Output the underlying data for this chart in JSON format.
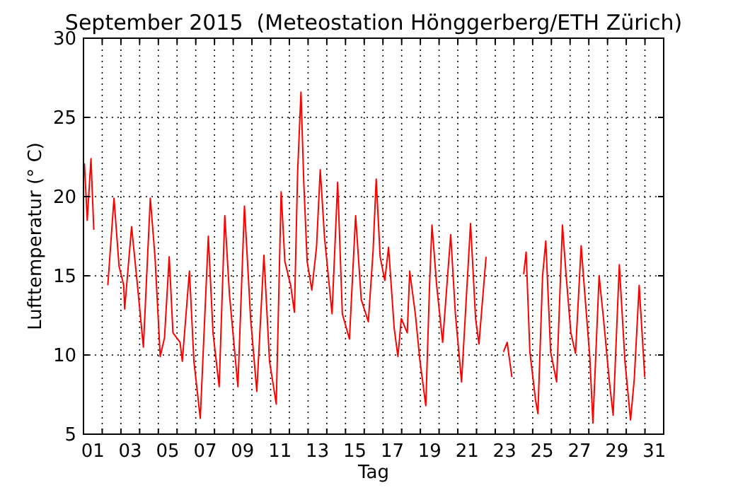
{
  "chart_data": {
    "type": "line",
    "title": "September 2015  (Meteostation Hönggerberg/ETH Zürich)",
    "xlabel": "Tag",
    "ylabel": "Lufttemperatur (° C)",
    "x": [
      1.05,
      1.2,
      1.4,
      1.55,
      1.9,
      2.3,
      2.63,
      2.9,
      3.15,
      3.2,
      3.57,
      3.9,
      4.2,
      4.57,
      4.82,
      5.1,
      5.33,
      5.58,
      5.78,
      6.16,
      6.28,
      6.66,
      6.9,
      7.24,
      7.67,
      7.92,
      8.25,
      8.55,
      8.8,
      9.25,
      9.6,
      9.93,
      10.26,
      10.64,
      10.94,
      11.3,
      11.56,
      11.76,
      12.07,
      12.27,
      12.44,
      12.62,
      12.77,
      12.95,
      13.2,
      13.45,
      13.65,
      13.88,
      14.28,
      14.58,
      14.83,
      15.21,
      15.54,
      15.84,
      16.22,
      16.47,
      16.64,
      16.85,
      17.1,
      17.3,
      17.6,
      17.8,
      17.98,
      18.3,
      18.43,
      18.73,
      18.98,
      19.29,
      19.49,
      19.62,
      19.87,
      20.19,
      20.62,
      20.87,
      21.2,
      21.68,
      21.95,
      22.13,
      22.51,
      23.0,
      23.44,
      23.64,
      23.89,
      24.2,
      24.52,
      24.65,
      24.85,
      25.15,
      25.28,
      25.53,
      25.7,
      25.96,
      26.28,
      26.59,
      26.79,
      27.04,
      27.29,
      27.59,
      27.79,
      28.05,
      28.22,
      28.55,
      28.8,
      29.1,
      29.3,
      29.63,
      29.93,
      30.23,
      30.43,
      30.69,
      30.99
    ],
    "series": [
      {
        "color": "#ff0000",
        "values": [
          22.1,
          18.5,
          22.4,
          17.9,
          null,
          14.4,
          19.9,
          15.6,
          14.4,
          12.9,
          18.1,
          14.2,
          10.5,
          19.9,
          16.2,
          9.9,
          11.1,
          16.2,
          11.4,
          10.8,
          9.6,
          15.3,
          9.6,
          6.0,
          17.5,
          11.4,
          8.0,
          18.8,
          13.8,
          8.0,
          19.4,
          12.3,
          7.7,
          16.3,
          9.6,
          6.9,
          20.3,
          15.9,
          14.4,
          12.7,
          21.5,
          26.6,
          20.9,
          15.9,
          14.1,
          16.8,
          21.7,
          17.4,
          12.6,
          20.9,
          12.6,
          11.0,
          18.8,
          13.5,
          12.1,
          16.5,
          21.1,
          16.2,
          14.7,
          16.8,
          11.7,
          9.9,
          12.3,
          11.4,
          15.3,
          12.6,
          9.6,
          6.8,
          14.4,
          18.2,
          14.4,
          10.8,
          17.6,
          12.6,
          8.3,
          18.3,
          12.3,
          10.7,
          16.2,
          null,
          10.2,
          10.8,
          8.6,
          null,
          15.1,
          16.5,
          10.2,
          7.2,
          6.3,
          15.0,
          17.2,
          10.2,
          8.3,
          18.2,
          15.0,
          11.4,
          10.1,
          16.9,
          13.8,
          9.9,
          5.7,
          15.0,
          12.1,
          8.3,
          6.2,
          15.7,
          9.6,
          5.9,
          8.5,
          14.4,
          8.6
        ]
      }
    ],
    "xlim": [
      1,
      32
    ],
    "xticks": [
      {
        "value": 1.5,
        "label": "01"
      },
      {
        "value": 3.5,
        "label": "03"
      },
      {
        "value": 5.5,
        "label": "05"
      },
      {
        "value": 7.5,
        "label": "07"
      },
      {
        "value": 9.5,
        "label": "09"
      },
      {
        "value": 11.5,
        "label": "11"
      },
      {
        "value": 13.5,
        "label": "13"
      },
      {
        "value": 15.5,
        "label": "15"
      },
      {
        "value": 17.5,
        "label": "17"
      },
      {
        "value": 19.5,
        "label": "19"
      },
      {
        "value": 21.5,
        "label": "21"
      },
      {
        "value": 23.5,
        "label": "23"
      },
      {
        "value": 25.5,
        "label": "25"
      },
      {
        "value": 27.5,
        "label": "27"
      },
      {
        "value": 29.5,
        "label": "29"
      },
      {
        "value": 31.5,
        "label": "31"
      },
      {
        "value": 2,
        "label": null
      },
      {
        "value": 3,
        "label": null
      },
      {
        "value": 4,
        "label": null
      },
      {
        "value": 5,
        "label": null
      },
      {
        "value": 6,
        "label": null
      },
      {
        "value": 7,
        "label": null
      },
      {
        "value": 8,
        "label": null
      },
      {
        "value": 9,
        "label": null
      },
      {
        "value": 10,
        "label": null
      },
      {
        "value": 11,
        "label": null
      },
      {
        "value": 12,
        "label": null
      },
      {
        "value": 13,
        "label": null
      },
      {
        "value": 14,
        "label": null
      },
      {
        "value": 15,
        "label": null
      },
      {
        "value": 16,
        "label": null
      },
      {
        "value": 17,
        "label": null
      },
      {
        "value": 18,
        "label": null
      },
      {
        "value": 19,
        "label": null
      },
      {
        "value": 20,
        "label": null
      },
      {
        "value": 21,
        "label": null
      },
      {
        "value": 22,
        "label": null
      },
      {
        "value": 23,
        "label": null
      },
      {
        "value": 24,
        "label": null
      },
      {
        "value": 25,
        "label": null
      },
      {
        "value": 26,
        "label": null
      },
      {
        "value": 27,
        "label": null
      },
      {
        "value": 28,
        "label": null
      },
      {
        "value": 29,
        "label": null
      },
      {
        "value": 30,
        "label": null
      },
      {
        "value": 31,
        "label": null
      }
    ],
    "ylim": [
      5,
      30
    ],
    "yticks": [
      5,
      10,
      15,
      20,
      25,
      30
    ],
    "grid": true,
    "line_style": "solid",
    "marker": "none"
  }
}
